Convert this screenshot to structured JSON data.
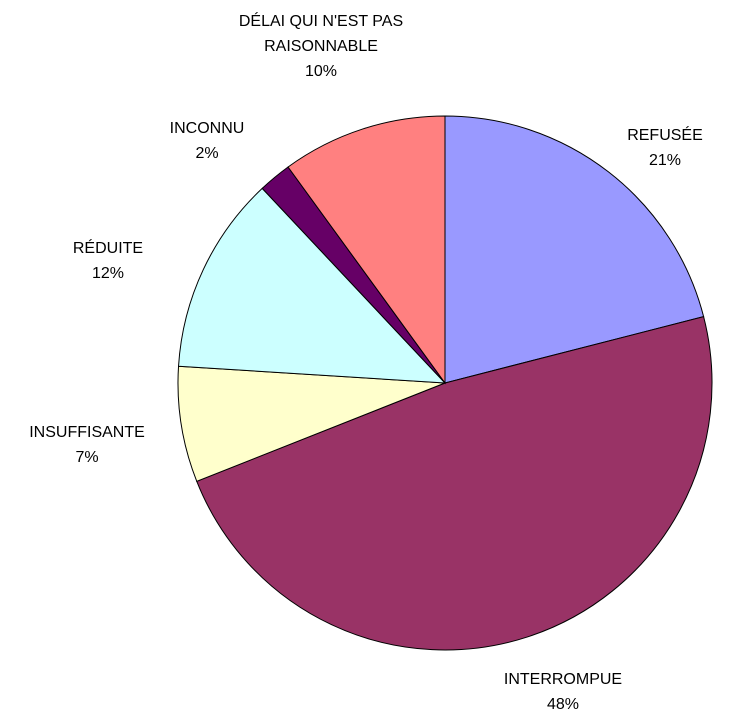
{
  "chart_data": {
    "type": "pie",
    "categories": [
      "REFUSÉE",
      "INTERROMPUE",
      "INSUFFISANTE",
      "RÉDUITE",
      "INCONNU",
      "DÉLAI QUI N'EST PAS RAISONNABLE"
    ],
    "values": [
      21,
      48,
      7,
      12,
      2,
      10
    ],
    "value_labels": [
      "21%",
      "48%",
      "7%",
      "12%",
      "2%",
      "10%"
    ],
    "colors": [
      "#9999ff",
      "#993366",
      "#ffffcc",
      "#ccffff",
      "#660066",
      "#ff8080"
    ]
  }
}
